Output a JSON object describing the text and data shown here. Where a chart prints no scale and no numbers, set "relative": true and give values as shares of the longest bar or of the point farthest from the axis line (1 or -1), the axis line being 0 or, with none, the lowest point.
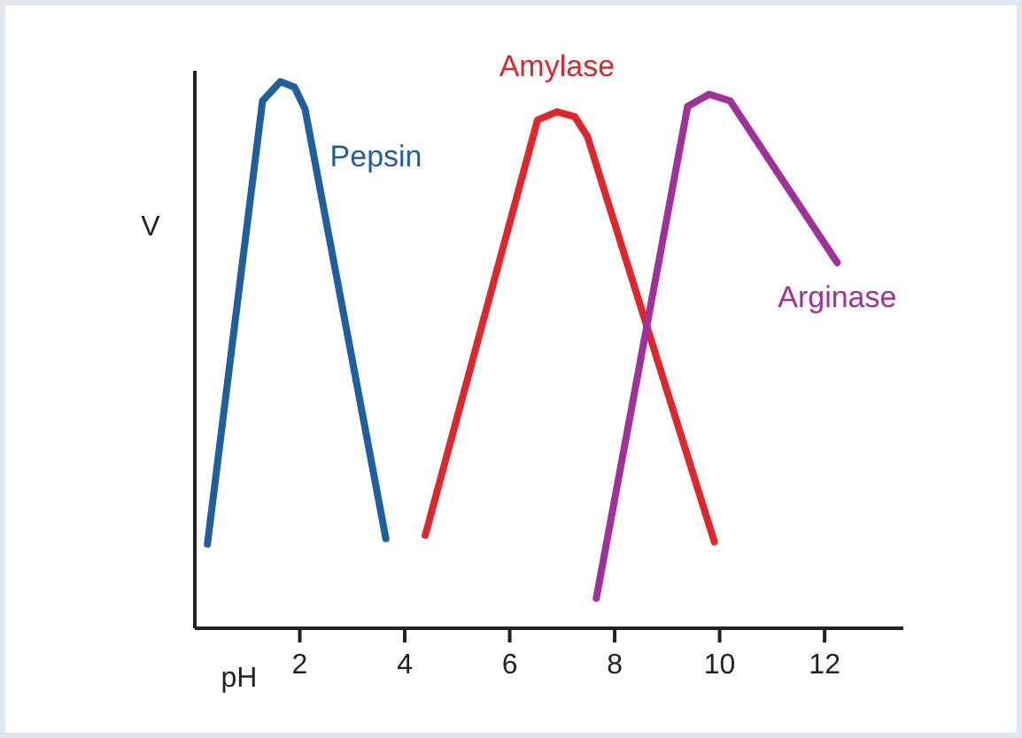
{
  "chart_data": {
    "type": "line",
    "relative": true,
    "xlabel": "pH",
    "ylabel": "V",
    "xlim": [
      0,
      13.5
    ],
    "xticks": [
      2,
      4,
      6,
      8,
      10,
      12
    ],
    "marker": "none",
    "line_style": "solid",
    "tick_labels": "x",
    "series": [
      {
        "name": "Pepsin",
        "color": "#1f5fa0",
        "x": [
          0.24,
          1.29,
          1.63,
          1.9,
          2.1,
          3.64
        ],
        "values": [
          0.154,
          0.965,
          1.0,
          0.99,
          0.95,
          0.164
        ]
      },
      {
        "name": "Amylase",
        "color": "#e0262b",
        "x": [
          4.39,
          6.53,
          6.9,
          7.24,
          7.48,
          9.9
        ],
        "values": [
          0.17,
          0.93,
          0.945,
          0.936,
          0.9,
          0.158
        ]
      },
      {
        "name": "Arginase",
        "color": "#a0309a",
        "x": [
          7.65,
          9.39,
          9.8,
          10.2,
          12.24
        ],
        "values": [
          0.055,
          0.955,
          0.977,
          0.965,
          0.669
        ]
      }
    ]
  }
}
